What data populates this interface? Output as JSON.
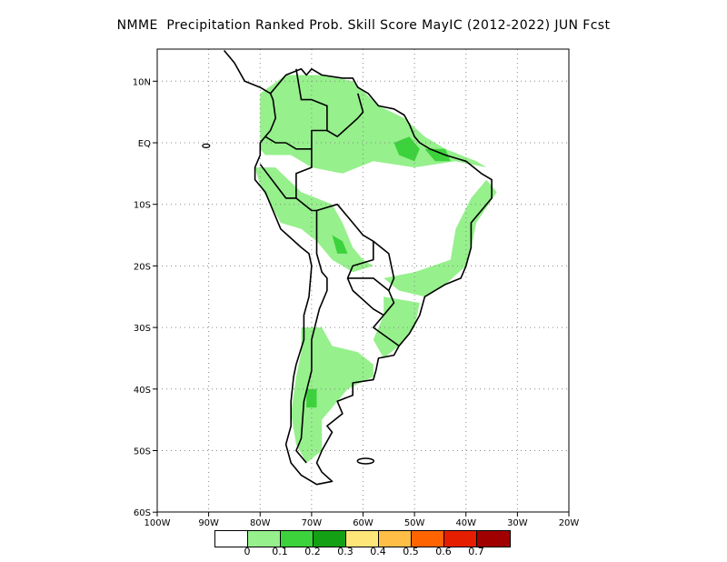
{
  "title": "NMME  Precipitation Ranked Prob. Skill Score MayIC (2012-2022) JUN Fcst",
  "map": {
    "region": "South America",
    "lat_range": [
      -60,
      15
    ],
    "lon_range": [
      -100,
      -20
    ],
    "lat_ticks": [
      {
        "value": 10,
        "label": "10N"
      },
      {
        "value": 0,
        "label": "EQ"
      },
      {
        "value": -10,
        "label": "10S"
      },
      {
        "value": -20,
        "label": "20S"
      },
      {
        "value": -30,
        "label": "30S"
      },
      {
        "value": -40,
        "label": "40S"
      },
      {
        "value": -50,
        "label": "50S"
      },
      {
        "value": -60,
        "label": "60S"
      }
    ],
    "lon_ticks": [
      {
        "value": -100,
        "label": "100W"
      },
      {
        "value": -90,
        "label": "90W"
      },
      {
        "value": -80,
        "label": "80W"
      },
      {
        "value": -70,
        "label": "70W"
      },
      {
        "value": -60,
        "label": "60W"
      },
      {
        "value": -50,
        "label": "50W"
      },
      {
        "value": -40,
        "label": "40W"
      },
      {
        "value": -30,
        "label": "30W"
      },
      {
        "value": -20,
        "label": "20W"
      }
    ],
    "grid": true,
    "grid_style": "dotted"
  },
  "legend": {
    "colors": [
      "#ffffff",
      "#96f08c",
      "#3cd23c",
      "#14a014",
      "#ffe678",
      "#ffbe46",
      "#ff6400",
      "#e61e00",
      "#a00000"
    ],
    "labels": [
      "0",
      "0.1",
      "0.2",
      "0.3",
      "0.4",
      "0.5",
      "0.6",
      "0.7"
    ]
  }
}
